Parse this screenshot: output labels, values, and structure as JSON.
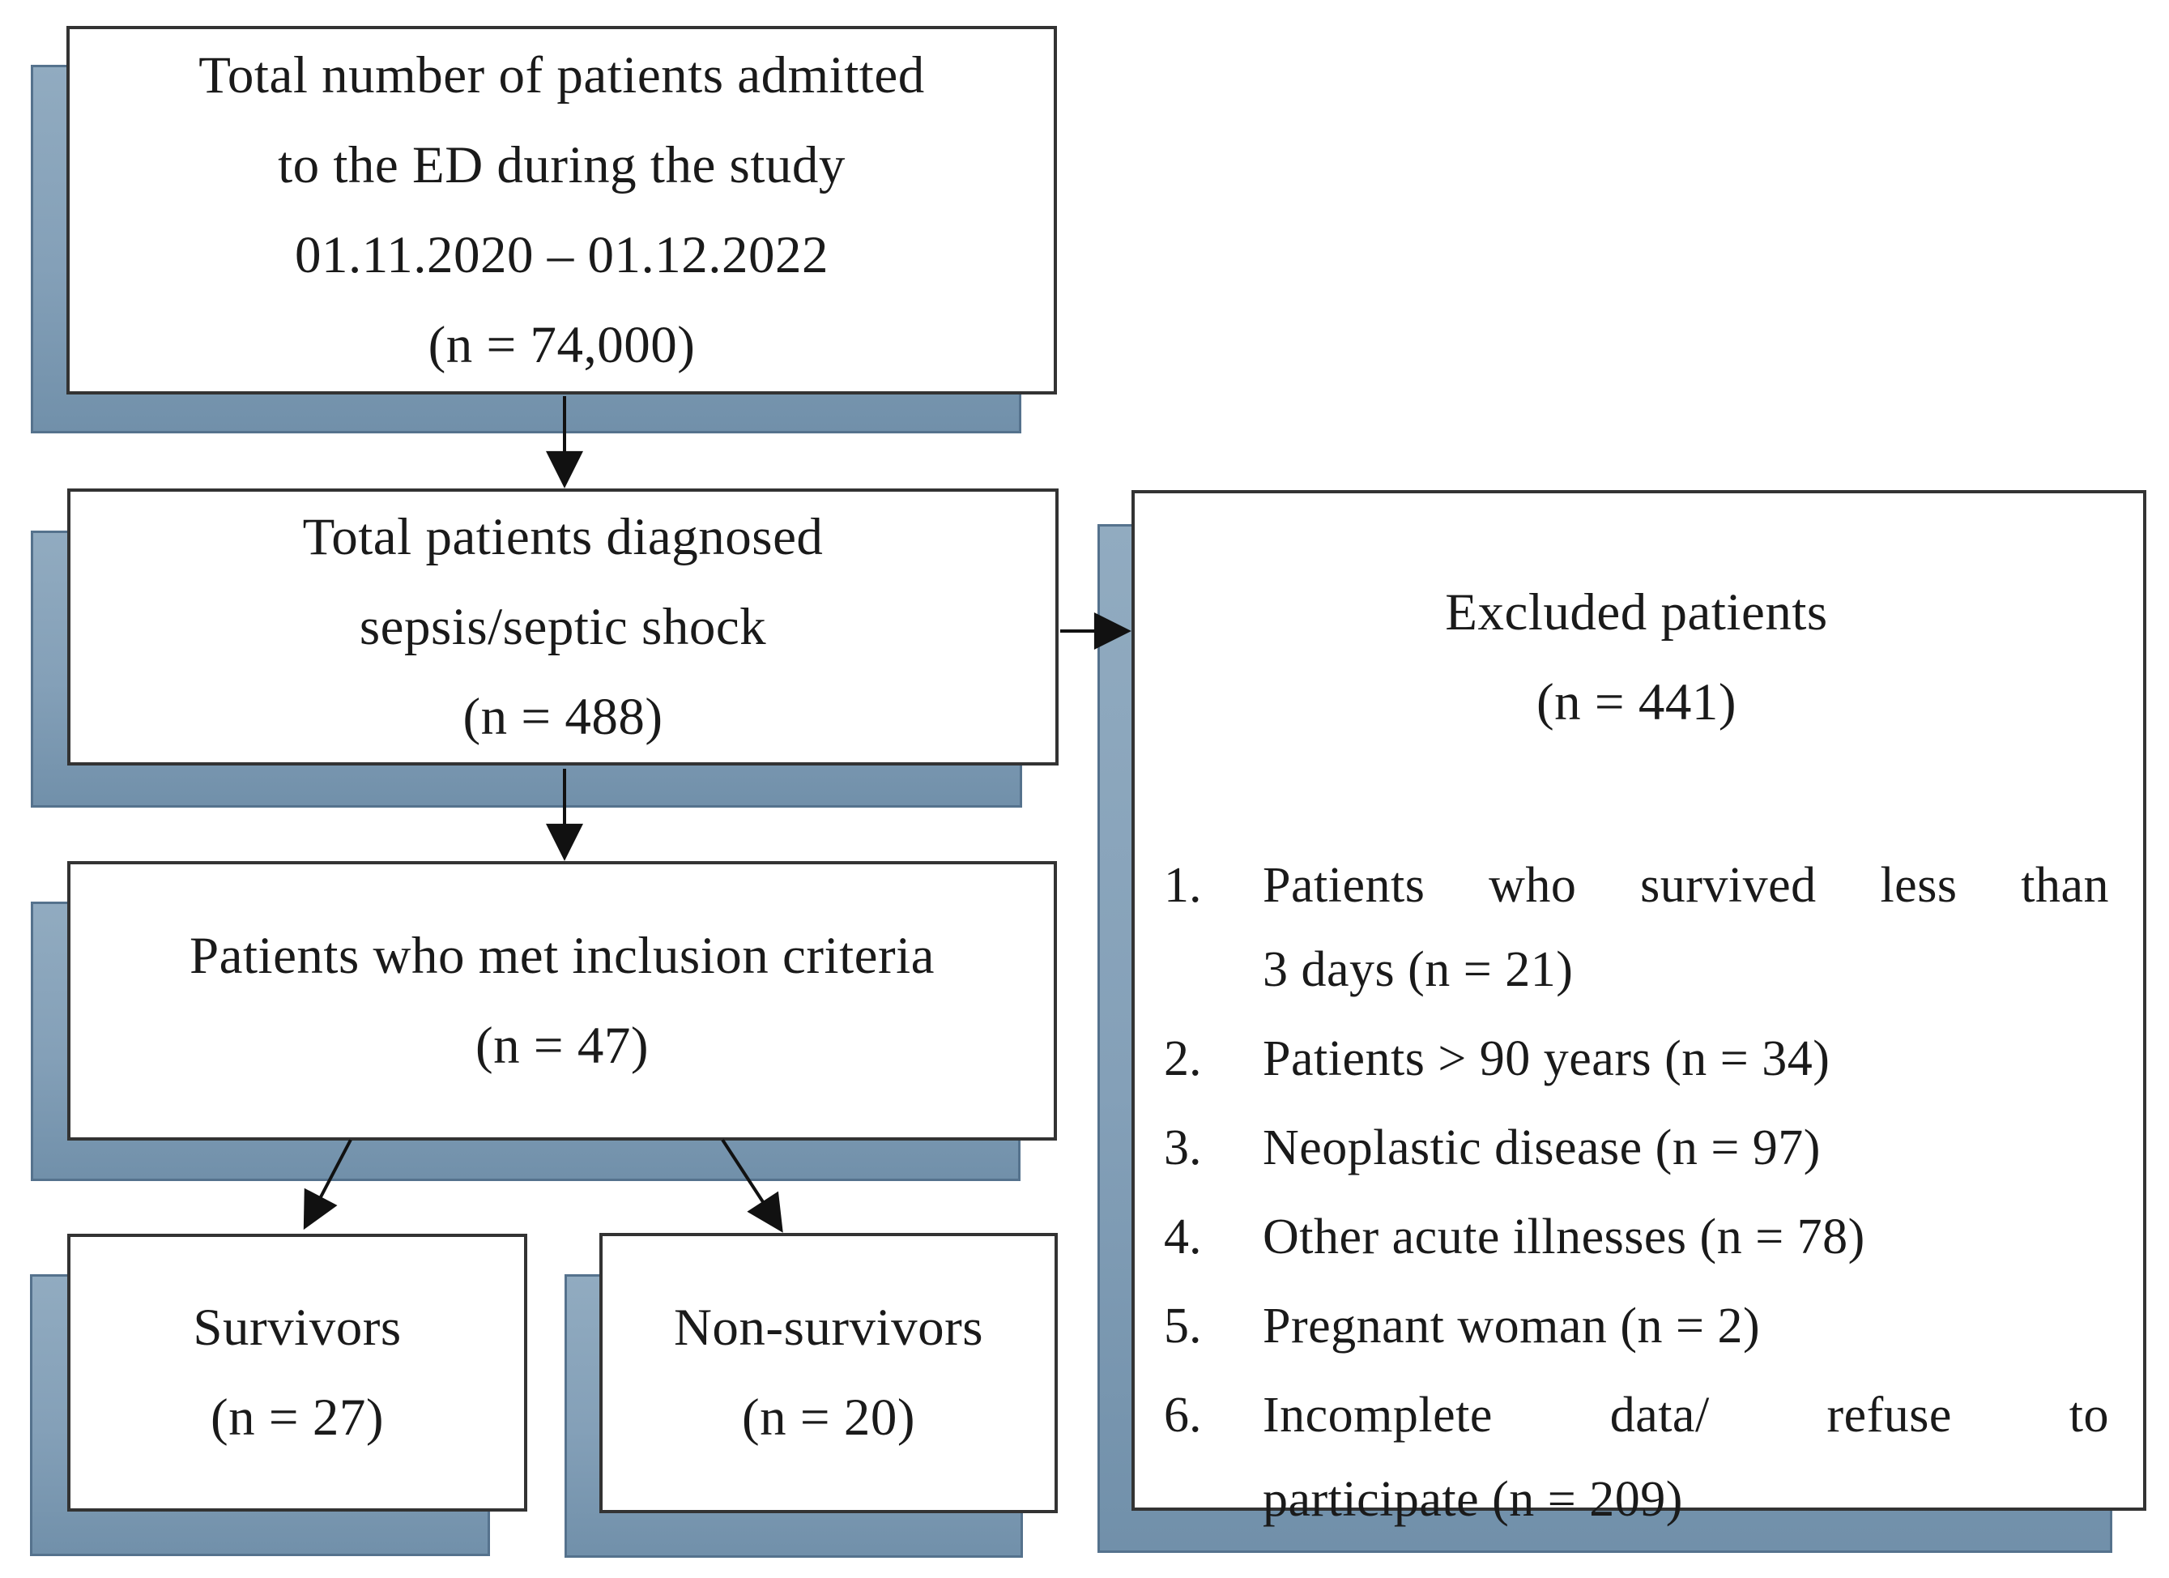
{
  "diagram": {
    "title": "Patient selection flow diagram",
    "boxes": {
      "admitted": {
        "text": "Total number of patients admitted\nto the ED during the study\n01.11.2020 – 01.12.2022\n(n = 74,000)"
      },
      "diagnosed": {
        "text": "Total patients diagnosed\nsepsis/septic shock\n(n = 488)"
      },
      "inclusion": {
        "text": "Patients who met inclusion criteria\n(n = 47)"
      },
      "survivors": {
        "text": "Survivors\n(n = 27)"
      },
      "non_survivors": {
        "text": "Non-survivors\n(n = 20)"
      },
      "excluded": {
        "title": "Excluded patients\n(n = 441)",
        "items": [
          {
            "num": "1.",
            "lines": [
              "Patients who survived less than",
              "3 days (n = 21)"
            ]
          },
          {
            "num": "2.",
            "lines": [
              "Patients > 90 years (n = 34)"
            ]
          },
          {
            "num": "3.",
            "lines": [
              "Neoplastic disease (n = 97)"
            ]
          },
          {
            "num": "4.",
            "lines": [
              "Other acute illnesses (n = 78)"
            ]
          },
          {
            "num": "5.",
            "lines": [
              "Pregnant woman (n = 2)"
            ]
          },
          {
            "num": "6.",
            "lines": [
              "Incomplete data/ refuse to",
              "participate (n = 209)"
            ]
          }
        ]
      }
    },
    "colors": {
      "shadow": "#84a0b8",
      "shadow_border": "#55728d",
      "box_border": "#333333",
      "text": "#1a1a1a",
      "background": "#ffffff"
    }
  }
}
